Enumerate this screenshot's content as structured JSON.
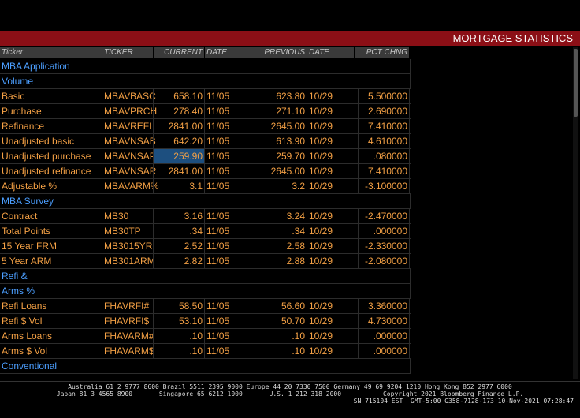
{
  "header": {
    "title": "MORTGAGE STATISTICS"
  },
  "table": {
    "columns": [
      "Ticker",
      "TICKER",
      "CURRENT",
      "DATE",
      "PREVIOUS",
      "DATE",
      "PCT CHNG"
    ],
    "rows": [
      {
        "label": "MBA Application"
      },
      {
        "label": "Volume"
      },
      {
        "cells": [
          "Basic",
          "MBAVBASC",
          "658.10",
          "11/05",
          "623.80",
          "10/29",
          "5.500000"
        ]
      },
      {
        "cells": [
          "Purchase",
          "MBAVPRCH",
          "278.40",
          "11/05",
          "271.10",
          "10/29",
          "2.690000"
        ]
      },
      {
        "cells": [
          "Refinance",
          "MBAVREFI",
          "2841.00",
          "11/05",
          "2645.00",
          "10/29",
          "7.410000"
        ]
      },
      {
        "cells": [
          "Unadjusted basic",
          "MBAVNSAB",
          "642.20",
          "11/05",
          "613.90",
          "10/29",
          "4.610000"
        ]
      },
      {
        "cells": [
          "Unadjusted purchase",
          "MBAVNSAP",
          "259.90",
          "11/05",
          "259.70",
          "10/29",
          ".080000"
        ],
        "highlight": true
      },
      {
        "cells": [
          "Unadjusted refinance",
          "MBAVNSAR",
          "2841.00",
          "11/05",
          "2645.00",
          "10/29",
          "7.410000"
        ]
      },
      {
        "cells": [
          "Adjustable %",
          "MBAVARM%",
          "3.1",
          "11/05",
          "3.2",
          "10/29",
          "-3.100000"
        ]
      },
      {
        "label": "MBA Survey"
      },
      {
        "cells": [
          "Contract",
          "MB30",
          "3.16",
          "11/05",
          "3.24",
          "10/29",
          "-2.470000"
        ]
      },
      {
        "cells": [
          "Total Points",
          "MB30TP",
          ".34",
          "11/05",
          ".34",
          "10/29",
          ".000000"
        ]
      },
      {
        "cells": [
          "15 Year FRM",
          "MB3015YR",
          "2.52",
          "11/05",
          "2.58",
          "10/29",
          "-2.330000"
        ]
      },
      {
        "cells": [
          "5 Year ARM",
          "MB301ARM",
          "2.82",
          "11/05",
          "2.88",
          "10/29",
          "-2.080000"
        ]
      },
      {
        "label": "Refi &"
      },
      {
        "label": "Arms %"
      },
      {
        "cells": [
          "Refi Loans",
          "FHAVRFI#",
          "58.50",
          "11/05",
          "56.60",
          "10/29",
          "3.360000"
        ]
      },
      {
        "cells": [
          "Refi $ Vol",
          "FHAVRFI$",
          "53.10",
          "11/05",
          "50.70",
          "10/29",
          "4.730000"
        ]
      },
      {
        "cells": [
          "Arms Loans",
          "FHAVARM#",
          ".10",
          "11/05",
          ".10",
          "10/29",
          ".000000"
        ]
      },
      {
        "cells": [
          "Arms $ Vol",
          "FHAVARM$",
          ".10",
          "11/05",
          ".10",
          "10/29",
          ".000000"
        ]
      },
      {
        "label": "Conventional"
      }
    ]
  },
  "footer": {
    "lines": [
      "Australia 61 2 9777 8600 Brazil 5511 2395 9000 Europe 44 20 7330 7500 Germany 49 69 9204 1210 Hong Kong 852 2977 6000",
      "Japan 81 3 4565 8900       Singapore 65 6212 1000       U.S. 1 212 318 2000           Copyright 2021 Bloomberg Finance L.P.",
      "SN 715104 EST  GMT-5:00 G358-7128-173 10-Nov-2021 07:28:47"
    ]
  }
}
